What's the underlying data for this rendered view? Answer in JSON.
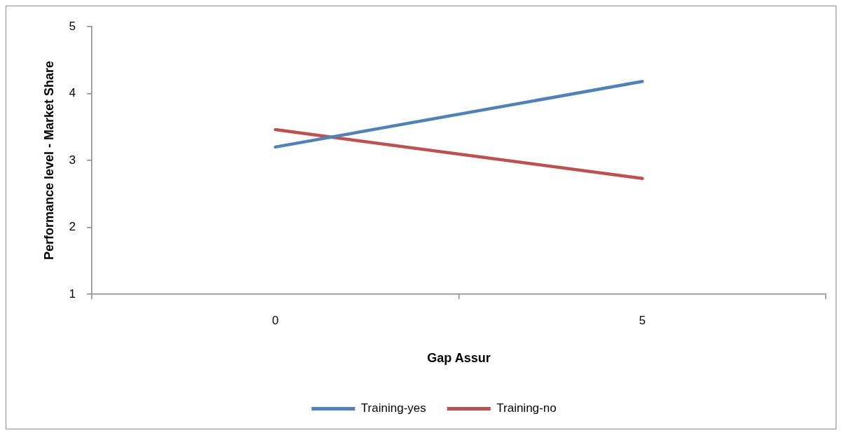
{
  "chart_data": {
    "type": "line",
    "xlabel": "Gap Assur",
    "ylabel": "Performance level - Market Share",
    "categories": [
      "0",
      "5"
    ],
    "series": [
      {
        "name": "Training-yes",
        "color": "#4f81bd",
        "values": [
          3.2,
          4.18
        ]
      },
      {
        "name": "Training-no",
        "color": "#c0504d",
        "values": [
          3.46,
          2.73
        ]
      }
    ],
    "ylim": [
      1,
      5
    ],
    "yticks": [
      1,
      2,
      3,
      4,
      5
    ],
    "grid": false,
    "legend": "bottom",
    "marker": "none",
    "line_style": "solid"
  }
}
